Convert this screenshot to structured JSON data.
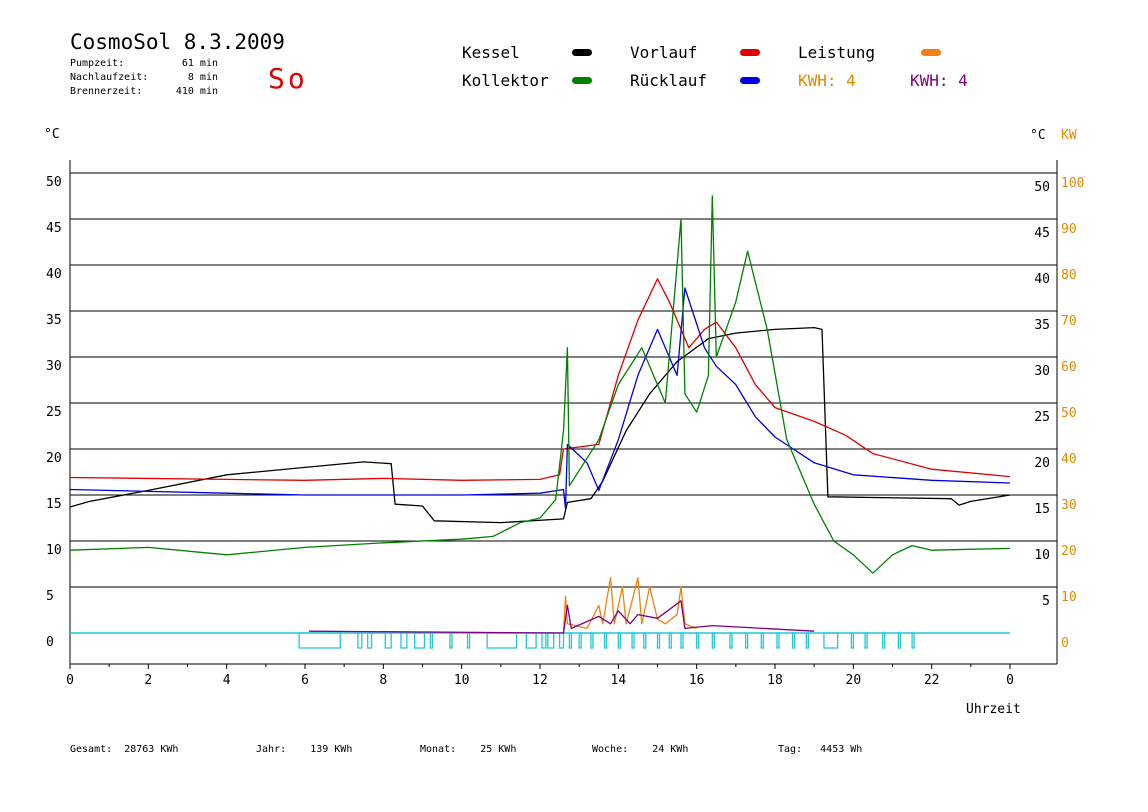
{
  "header": {
    "title": "CosmoSol 8.3.2009",
    "pump_label": "Pumpzeit:",
    "pump_value": "61 min",
    "nachlauf_label": "Nachlaufzeit:",
    "nachlauf_value": "8 min",
    "brenner_label": "Brennerzeit:",
    "brenner_value": "410 min",
    "weekday": "So"
  },
  "legend": {
    "kessel": "Kessel",
    "vorlauf": "Vorlauf",
    "leistung": "Leistung",
    "kollektor": "Kollektor",
    "ruecklauf": "Rücklauf",
    "kwh_orange": "KWH: 4",
    "kwh_purple": "KWH: 4"
  },
  "axes": {
    "left_unit": "°C",
    "right_unit": "°C",
    "right_unit2": "KW",
    "xlabel": "Uhrzeit"
  },
  "footer": {
    "gesamt_label": "Gesamt:",
    "gesamt_value": "28763 KWh",
    "jahr_label": "Jahr:",
    "jahr_value": "139 KWh",
    "monat_label": "Monat:",
    "monat_value": "25 KWh",
    "woche_label": "Woche:",
    "woche_value": "24 KWh",
    "tag_label": "Tag:",
    "tag_value": "4453 Wh"
  },
  "colors": {
    "kessel": "#000000",
    "vorlauf": "#e00000",
    "leistung": "#f08010",
    "kollektor": "#008000",
    "ruecklauf": "#0000dd",
    "kwh_orange": "#e08a00",
    "kwh_purple": "#800080",
    "pump": "#20c8d8"
  },
  "chart_data": {
    "type": "line",
    "xlabel": "Uhrzeit",
    "xlim": [
      0,
      24
    ],
    "ylim_left": [
      0,
      50
    ],
    "ylim_right_kw": [
      0,
      100
    ],
    "x_ticks": [
      "0",
      "2",
      "4",
      "6",
      "8",
      "10",
      "12",
      "14",
      "16",
      "18",
      "20",
      "22",
      "0"
    ],
    "y_ticks_left": [
      "0",
      "5",
      "10",
      "15",
      "20",
      "25",
      "30",
      "35",
      "40",
      "45",
      "50"
    ],
    "y_ticks_right_temp": [
      "5",
      "10",
      "15",
      "20",
      "25",
      "30",
      "35",
      "40",
      "45",
      "50"
    ],
    "y_ticks_right_kw": [
      "0",
      "10",
      "20",
      "30",
      "40",
      "50",
      "60",
      "70",
      "80",
      "90",
      "100"
    ],
    "series": [
      {
        "name": "Kessel",
        "color": "#000000",
        "points": [
          [
            0,
            13.7
          ],
          [
            0.5,
            14.3
          ],
          [
            2,
            15.5
          ],
          [
            4,
            17.2
          ],
          [
            6,
            18
          ],
          [
            7.5,
            18.6
          ],
          [
            8.2,
            18.4
          ],
          [
            8.3,
            14
          ],
          [
            9,
            13.8
          ],
          [
            9.3,
            12.2
          ],
          [
            11,
            12
          ],
          [
            12.6,
            12.4
          ],
          [
            12.7,
            14.2
          ],
          [
            13.3,
            14.6
          ],
          [
            13.6,
            16.5
          ],
          [
            14.2,
            22
          ],
          [
            14.8,
            26
          ],
          [
            15.5,
            29.5
          ],
          [
            16.3,
            32
          ],
          [
            17,
            32.6
          ],
          [
            18,
            33
          ],
          [
            19,
            33.2
          ],
          [
            19.2,
            33
          ],
          [
            19.35,
            14.8
          ],
          [
            22.5,
            14.6
          ],
          [
            22.7,
            13.9
          ],
          [
            23,
            14.3
          ],
          [
            24,
            15
          ]
        ]
      },
      {
        "name": "Vorlauf",
        "color": "#e00000",
        "points": [
          [
            0,
            16.9
          ],
          [
            4,
            16.7
          ],
          [
            6,
            16.6
          ],
          [
            8,
            16.8
          ],
          [
            10,
            16.6
          ],
          [
            12,
            16.7
          ],
          [
            12.5,
            17.2
          ],
          [
            12.6,
            20
          ],
          [
            13.5,
            20.5
          ],
          [
            14,
            28
          ],
          [
            14.5,
            34
          ],
          [
            15,
            38.5
          ],
          [
            15.3,
            36
          ],
          [
            15.8,
            31
          ],
          [
            16.2,
            33
          ],
          [
            16.5,
            33.8
          ],
          [
            17,
            31
          ],
          [
            17.5,
            27
          ],
          [
            18,
            24.5
          ],
          [
            19,
            23
          ],
          [
            19.8,
            21.5
          ],
          [
            20.5,
            19.5
          ],
          [
            22,
            17.8
          ],
          [
            24,
            17
          ]
        ]
      },
      {
        "name": "Rücklauf",
        "color": "#0000dd",
        "points": [
          [
            0,
            15.6
          ],
          [
            4,
            15.2
          ],
          [
            6,
            15
          ],
          [
            10,
            15
          ],
          [
            12,
            15.2
          ],
          [
            12.6,
            15.6
          ],
          [
            12.65,
            13.5
          ],
          [
            12.7,
            20.5
          ],
          [
            13.2,
            18.5
          ],
          [
            13.5,
            15.5
          ],
          [
            14,
            21
          ],
          [
            14.5,
            28
          ],
          [
            15,
            33
          ],
          [
            15.5,
            28
          ],
          [
            15.7,
            37.5
          ],
          [
            16.2,
            31
          ],
          [
            16.5,
            29
          ],
          [
            17,
            27
          ],
          [
            17.5,
            23.5
          ],
          [
            18,
            21.3
          ],
          [
            19,
            18.5
          ],
          [
            20,
            17.2
          ],
          [
            22,
            16.6
          ],
          [
            24,
            16.3
          ]
        ]
      },
      {
        "name": "Kollektor",
        "color": "#008000",
        "points": [
          [
            0,
            9
          ],
          [
            2,
            9.3
          ],
          [
            4,
            8.5
          ],
          [
            6,
            9.3
          ],
          [
            8,
            9.8
          ],
          [
            10,
            10.2
          ],
          [
            10.8,
            10.5
          ],
          [
            11.5,
            12
          ],
          [
            12,
            12.5
          ],
          [
            12.4,
            14.5
          ],
          [
            12.6,
            22
          ],
          [
            12.7,
            31
          ],
          [
            12.75,
            16
          ],
          [
            13.5,
            21
          ],
          [
            14,
            27
          ],
          [
            14.6,
            31
          ],
          [
            15.2,
            25
          ],
          [
            15.6,
            45
          ],
          [
            15.7,
            26
          ],
          [
            16,
            24
          ],
          [
            16.3,
            28
          ],
          [
            16.4,
            47.5
          ],
          [
            16.5,
            30
          ],
          [
            17,
            36
          ],
          [
            17.3,
            41.5
          ],
          [
            17.8,
            33
          ],
          [
            18.3,
            21
          ],
          [
            19,
            14
          ],
          [
            19.5,
            10
          ],
          [
            20,
            8.5
          ],
          [
            20.5,
            6.5
          ],
          [
            21,
            8.5
          ],
          [
            21.5,
            9.5
          ],
          [
            22,
            9
          ],
          [
            24,
            9.2
          ]
        ]
      },
      {
        "name": "Leistung",
        "color": "#f08010",
        "points": [
          [
            12.6,
            0
          ],
          [
            12.65,
            4
          ],
          [
            12.7,
            1
          ],
          [
            13.2,
            0.5
          ],
          [
            13.5,
            3
          ],
          [
            13.6,
            1
          ],
          [
            13.8,
            6
          ],
          [
            13.9,
            1
          ],
          [
            14.1,
            5
          ],
          [
            14.2,
            1
          ],
          [
            14.5,
            6
          ],
          [
            14.6,
            1
          ],
          [
            14.8,
            5
          ],
          [
            15,
            1.5
          ],
          [
            15.2,
            1
          ],
          [
            15.5,
            2
          ],
          [
            15.6,
            5
          ],
          [
            15.7,
            1
          ],
          [
            16,
            0.5
          ]
        ]
      },
      {
        "name": "KWH",
        "color": "#800080",
        "points": [
          [
            6.1,
            0.2
          ],
          [
            12.6,
            0
          ],
          [
            12.7,
            3
          ],
          [
            12.8,
            0.5
          ],
          [
            13.5,
            1.8
          ],
          [
            13.8,
            1
          ],
          [
            14,
            2.4
          ],
          [
            14.3,
            1
          ],
          [
            14.5,
            2
          ],
          [
            15,
            1.6
          ],
          [
            15.6,
            3.5
          ],
          [
            15.7,
            0.5
          ],
          [
            16.4,
            0.8
          ],
          [
            19,
            0.2
          ]
        ]
      }
    ],
    "pump_on_intervals": [
      [
        5.85,
        6.9
      ],
      [
        7.35,
        7.45
      ],
      [
        7.6,
        7.7
      ],
      [
        8.05,
        8.2
      ],
      [
        8.45,
        8.6
      ],
      [
        8.8,
        9.05
      ],
      [
        9.2,
        9.25
      ],
      [
        9.7,
        9.75
      ],
      [
        10.15,
        10.2
      ],
      [
        10.65,
        11.4
      ],
      [
        11.65,
        11.9
      ],
      [
        12.05,
        12.15
      ],
      [
        12.2,
        12.35
      ],
      [
        12.5,
        12.6
      ],
      [
        12.75,
        12.8
      ],
      [
        13.0,
        13.05
      ],
      [
        13.3,
        13.35
      ],
      [
        13.65,
        13.7
      ],
      [
        14.0,
        14.05
      ],
      [
        14.35,
        14.4
      ],
      [
        14.65,
        14.7
      ],
      [
        15.0,
        15.05
      ],
      [
        15.3,
        15.35
      ],
      [
        15.6,
        15.65
      ],
      [
        16.0,
        16.05
      ],
      [
        16.4,
        16.45
      ],
      [
        16.85,
        16.9
      ],
      [
        17.25,
        17.3
      ],
      [
        17.65,
        17.7
      ],
      [
        18.05,
        18.1
      ],
      [
        18.45,
        18.5
      ],
      [
        18.8,
        18.85
      ],
      [
        19.25,
        19.6
      ],
      [
        19.95,
        20.0
      ],
      [
        20.3,
        20.35
      ],
      [
        20.75,
        20.8
      ],
      [
        21.15,
        21.2
      ],
      [
        21.5,
        21.55
      ]
    ],
    "grid": true
  }
}
